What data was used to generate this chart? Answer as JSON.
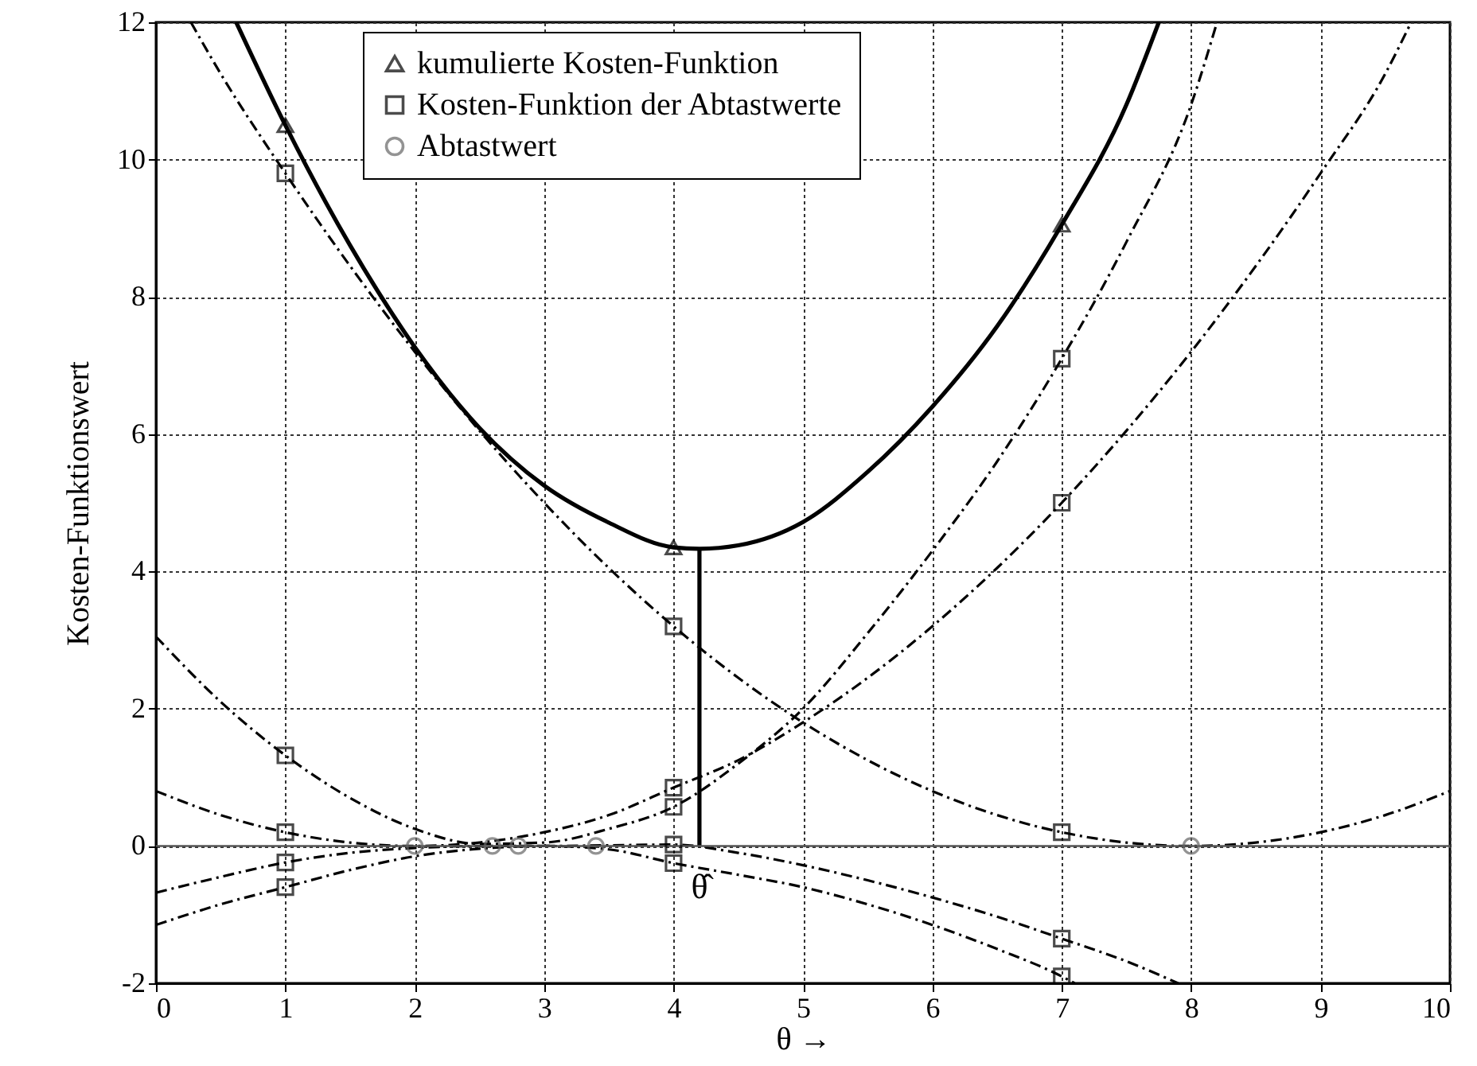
{
  "chart_data": {
    "type": "line",
    "xlabel": "θ →",
    "ylabel": "Kosten-Funktionswert",
    "xlim": [
      0,
      10
    ],
    "ylim": [
      -2,
      12
    ],
    "xticks": [
      0,
      1,
      2,
      3,
      4,
      5,
      6,
      7,
      8,
      9,
      10
    ],
    "yticks": [
      -2,
      0,
      2,
      4,
      6,
      8,
      10,
      12
    ],
    "grid": true,
    "legend": "top",
    "ref_lines": [
      {
        "axis": "y",
        "value": 0,
        "color": "#555555"
      }
    ],
    "annotations": [
      {
        "text": "θ̂",
        "x": 4.2,
        "y": 0
      }
    ],
    "series": [
      {
        "type": "line",
        "color": "#000000",
        "line_style": "solid",
        "x": [
          0.62,
          1,
          1.5,
          2,
          2.5,
          3,
          3.5,
          4,
          4.2,
          4.5,
          5,
          5.5,
          6,
          6.5,
          7,
          7.5,
          7.75
        ],
        "values": [
          12,
          10.5,
          8.75,
          7.27,
          6.09,
          5.25,
          4.71,
          4.35,
          4.33,
          4.38,
          4.72,
          5.45,
          6.4,
          7.57,
          9.05,
          10.8,
          12
        ]
      },
      {
        "type": "line",
        "color": "#000000",
        "line_style": "dashed",
        "x": [
          0.27,
          0.5,
          1,
          1.5,
          2,
          2.5,
          3,
          3.5,
          4,
          4.5,
          5,
          5.5,
          6,
          6.5,
          7,
          7.5,
          8,
          8.5,
          9,
          9.5,
          10
        ],
        "values": [
          12,
          11.25,
          9.8,
          8.45,
          7.2,
          6.05,
          5,
          4.05,
          3.2,
          2.45,
          1.8,
          1.25,
          0.8,
          0.45,
          0.2,
          0.05,
          0,
          0.05,
          0.2,
          0.45,
          0.8
        ]
      },
      {
        "type": "line",
        "color": "#000000",
        "line_style": "dashed",
        "x": [
          0,
          0.5,
          1,
          1.5,
          2,
          2.5,
          3,
          3.5,
          4,
          4.5,
          5,
          5.5,
          6,
          6.5,
          7,
          7.5,
          8,
          8.5,
          9,
          9.5,
          9.7
        ],
        "values": [
          0.8,
          0.45,
          0.2,
          0.05,
          0,
          0.05,
          0.2,
          0.45,
          0.85,
          1.25,
          1.8,
          2.45,
          3.2,
          4.05,
          5,
          6.05,
          7.2,
          8.45,
          9.8,
          11.25,
          12
        ]
      },
      {
        "type": "line",
        "color": "#000000",
        "line_style": "dashed",
        "x": [
          0,
          0.5,
          1,
          1.5,
          2,
          2.5,
          3,
          3.5,
          4,
          4.5,
          5,
          5.5,
          6,
          6.5,
          7,
          7.5,
          8,
          8.2
        ],
        "values": [
          3.05,
          2.1,
          1.32,
          0.7,
          0.25,
          0.03,
          0.05,
          0.25,
          0.57,
          1.2,
          2,
          3.1,
          4.3,
          5.6,
          7.1,
          8.8,
          10.8,
          12
        ]
      },
      {
        "type": "line",
        "color": "#000000",
        "line_style": "dashed",
        "x": [
          0,
          0.5,
          1,
          1.5,
          2,
          2.5,
          3,
          3.5,
          4,
          4.5,
          5,
          5.5,
          6,
          6.5,
          7,
          7.5,
          7.9
        ],
        "values": [
          -0.68,
          -0.45,
          -0.24,
          -0.1,
          -0.03,
          0,
          0,
          0.01,
          0.02,
          -0.1,
          -0.28,
          -0.5,
          -0.75,
          -1.03,
          -1.35,
          -1.68,
          -2
        ]
      },
      {
        "type": "line",
        "color": "#000000",
        "line_style": "dashed",
        "x": [
          0,
          0.5,
          1,
          1.5,
          2,
          2.5,
          3,
          3.5,
          4,
          4.5,
          5,
          5.5,
          6,
          6.5,
          7,
          7.1
        ],
        "values": [
          -1.15,
          -0.85,
          -0.6,
          -0.35,
          -0.15,
          -0.04,
          0,
          -0.05,
          -0.25,
          -0.42,
          -0.6,
          -0.85,
          -1.15,
          -1.5,
          -1.9,
          -2
        ]
      },
      {
        "type": "line",
        "color": "#000000",
        "line_style": "solid",
        "x": [
          4.2,
          4.2
        ],
        "values": [
          0,
          4.33
        ]
      },
      {
        "type": "scatter",
        "name": "kumulierte Kosten-Funktion",
        "color": "#000000",
        "marker": "triangle",
        "x": [
          1,
          4,
          7
        ],
        "values": [
          10.5,
          4.35,
          9.05
        ]
      },
      {
        "type": "scatter",
        "name": "Kosten-Funktion der Abtastwerte",
        "color": "#000000",
        "marker": "square",
        "x": [
          1,
          1,
          1,
          1,
          1,
          4,
          4,
          4,
          4,
          4,
          7,
          7,
          7,
          7,
          7
        ],
        "values": [
          9.8,
          0.2,
          1.32,
          -0.24,
          -0.6,
          3.2,
          0.85,
          0.57,
          0.02,
          -0.25,
          0.2,
          5,
          7.1,
          -1.35,
          -1.9
        ]
      },
      {
        "type": "scatter",
        "name": "Abtastwert",
        "color": "#666666",
        "marker": "circle",
        "x": [
          2,
          2.6,
          2.8,
          3.4,
          8
        ],
        "values": [
          0,
          0,
          0,
          0,
          0
        ]
      }
    ]
  }
}
